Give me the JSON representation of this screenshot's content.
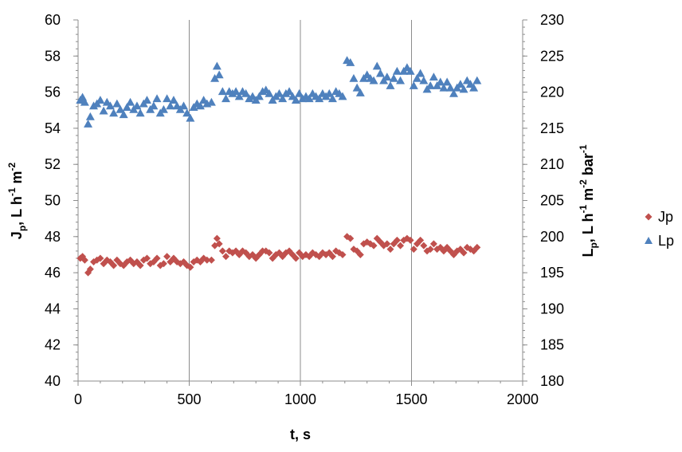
{
  "chart_data": {
    "type": "scatter",
    "title": "",
    "xlabel": "t, s",
    "ylabel_left": {
      "main": "J",
      "sub": "p",
      "rest": ", L h",
      "sup1": "-1",
      "mid": " m",
      "sup2": "-2"
    },
    "ylabel_right": {
      "main": "L",
      "sub": "p",
      "rest": ", L h",
      "sup1": "-1",
      "mid": " m",
      "sup2": "-2",
      "mid2": " bar",
      "sup3": "-1"
    },
    "xlim": [
      0,
      2000
    ],
    "ylim_left": [
      40,
      60
    ],
    "ylim_right": [
      180,
      230
    ],
    "x_ticks": [
      "0",
      "500",
      "1000",
      "1500",
      "2000"
    ],
    "y_left_ticks": [
      "40",
      "42",
      "44",
      "46",
      "48",
      "50",
      "52",
      "54",
      "56",
      "58",
      "60"
    ],
    "y_right_ticks": [
      "180",
      "185",
      "190",
      "195",
      "200",
      "205",
      "210",
      "215",
      "220",
      "225",
      "230"
    ],
    "grid": "vertical",
    "legend_position": "right",
    "series": [
      {
        "name": "Jp",
        "axis": "left",
        "color": "#C0504D",
        "marker": "diamond",
        "points": [
          [
            10,
            46.8
          ],
          [
            20,
            46.9
          ],
          [
            30,
            46.7
          ],
          [
            45,
            46.0
          ],
          [
            55,
            46.2
          ],
          [
            70,
            46.6
          ],
          [
            85,
            46.7
          ],
          [
            100,
            46.8
          ],
          [
            115,
            46.5
          ],
          [
            130,
            46.7
          ],
          [
            145,
            46.6
          ],
          [
            160,
            46.4
          ],
          [
            175,
            46.7
          ],
          [
            190,
            46.5
          ],
          [
            205,
            46.4
          ],
          [
            220,
            46.6
          ],
          [
            235,
            46.7
          ],
          [
            250,
            46.5
          ],
          [
            265,
            46.6
          ],
          [
            280,
            46.4
          ],
          [
            295,
            46.7
          ],
          [
            310,
            46.8
          ],
          [
            325,
            46.5
          ],
          [
            340,
            46.6
          ],
          [
            355,
            46.8
          ],
          [
            370,
            46.4
          ],
          [
            385,
            46.5
          ],
          [
            400,
            46.9
          ],
          [
            415,
            46.6
          ],
          [
            430,
            46.8
          ],
          [
            445,
            46.6
          ],
          [
            460,
            46.5
          ],
          [
            475,
            46.6
          ],
          [
            490,
            46.4
          ],
          [
            505,
            46.3
          ],
          [
            520,
            46.6
          ],
          [
            535,
            46.7
          ],
          [
            550,
            46.6
          ],
          [
            565,
            46.8
          ],
          [
            580,
            46.7
          ],
          [
            600,
            46.7
          ],
          [
            615,
            47.5
          ],
          [
            625,
            47.9
          ],
          [
            635,
            47.6
          ],
          [
            650,
            47.2
          ],
          [
            665,
            46.9
          ],
          [
            680,
            47.2
          ],
          [
            695,
            47.1
          ],
          [
            710,
            47.2
          ],
          [
            725,
            47.0
          ],
          [
            740,
            47.2
          ],
          [
            755,
            47.1
          ],
          [
            770,
            46.9
          ],
          [
            785,
            47.0
          ],
          [
            800,
            46.8
          ],
          [
            815,
            47.0
          ],
          [
            830,
            47.2
          ],
          [
            845,
            47.2
          ],
          [
            860,
            47.1
          ],
          [
            875,
            46.8
          ],
          [
            890,
            47.0
          ],
          [
            905,
            47.1
          ],
          [
            920,
            46.9
          ],
          [
            935,
            47.1
          ],
          [
            950,
            47.2
          ],
          [
            965,
            47.0
          ],
          [
            980,
            46.8
          ],
          [
            995,
            47.1
          ],
          [
            1010,
            46.9
          ],
          [
            1025,
            47.0
          ],
          [
            1040,
            46.9
          ],
          [
            1055,
            47.1
          ],
          [
            1070,
            47.0
          ],
          [
            1085,
            46.9
          ],
          [
            1100,
            47.1
          ],
          [
            1115,
            47.0
          ],
          [
            1130,
            47.1
          ],
          [
            1145,
            46.9
          ],
          [
            1160,
            47.2
          ],
          [
            1175,
            47.1
          ],
          [
            1190,
            47.0
          ],
          [
            1210,
            48.0
          ],
          [
            1225,
            47.9
          ],
          [
            1240,
            47.3
          ],
          [
            1255,
            47.2
          ],
          [
            1270,
            47.0
          ],
          [
            1285,
            47.6
          ],
          [
            1300,
            47.7
          ],
          [
            1315,
            47.6
          ],
          [
            1330,
            47.5
          ],
          [
            1345,
            47.9
          ],
          [
            1360,
            47.7
          ],
          [
            1375,
            47.5
          ],
          [
            1390,
            47.6
          ],
          [
            1405,
            47.3
          ],
          [
            1420,
            47.6
          ],
          [
            1435,
            47.8
          ],
          [
            1450,
            47.5
          ],
          [
            1465,
            47.8
          ],
          [
            1480,
            47.9
          ],
          [
            1495,
            47.8
          ],
          [
            1510,
            47.3
          ],
          [
            1525,
            47.6
          ],
          [
            1540,
            47.8
          ],
          [
            1555,
            47.5
          ],
          [
            1570,
            47.2
          ],
          [
            1585,
            47.3
          ],
          [
            1600,
            47.6
          ],
          [
            1615,
            47.3
          ],
          [
            1630,
            47.4
          ],
          [
            1645,
            47.2
          ],
          [
            1660,
            47.4
          ],
          [
            1675,
            47.2
          ],
          [
            1690,
            47.0
          ],
          [
            1705,
            47.2
          ],
          [
            1720,
            47.3
          ],
          [
            1735,
            47.1
          ],
          [
            1750,
            47.4
          ],
          [
            1765,
            47.3
          ],
          [
            1780,
            47.2
          ],
          [
            1795,
            47.4
          ]
        ]
      },
      {
        "name": "Lp",
        "axis": "right",
        "color": "#4F81BD",
        "marker": "triangle",
        "points": [
          [
            10,
            218.9
          ],
          [
            20,
            219.3
          ],
          [
            30,
            218.6
          ],
          [
            45,
            215.6
          ],
          [
            55,
            216.6
          ],
          [
            70,
            218.1
          ],
          [
            85,
            218.4
          ],
          [
            100,
            218.9
          ],
          [
            115,
            217.4
          ],
          [
            130,
            218.6
          ],
          [
            145,
            218.1
          ],
          [
            160,
            217.1
          ],
          [
            175,
            218.4
          ],
          [
            190,
            217.6
          ],
          [
            205,
            216.9
          ],
          [
            220,
            217.9
          ],
          [
            235,
            218.6
          ],
          [
            250,
            217.6
          ],
          [
            265,
            218.1
          ],
          [
            280,
            217.1
          ],
          [
            295,
            218.4
          ],
          [
            310,
            218.9
          ],
          [
            325,
            217.6
          ],
          [
            340,
            218.1
          ],
          [
            355,
            219.1
          ],
          [
            370,
            217.1
          ],
          [
            385,
            217.6
          ],
          [
            400,
            219.1
          ],
          [
            415,
            218.1
          ],
          [
            430,
            218.9
          ],
          [
            445,
            218.1
          ],
          [
            460,
            217.6
          ],
          [
            475,
            218.1
          ],
          [
            490,
            217.1
          ],
          [
            505,
            216.4
          ],
          [
            520,
            217.9
          ],
          [
            535,
            218.4
          ],
          [
            550,
            218.1
          ],
          [
            565,
            218.9
          ],
          [
            580,
            218.4
          ],
          [
            600,
            218.6
          ],
          [
            615,
            221.9
          ],
          [
            625,
            223.6
          ],
          [
            635,
            222.4
          ],
          [
            650,
            220.1
          ],
          [
            665,
            219.1
          ],
          [
            680,
            220.1
          ],
          [
            695,
            219.8
          ],
          [
            710,
            220.1
          ],
          [
            725,
            219.4
          ],
          [
            740,
            220.1
          ],
          [
            755,
            219.8
          ],
          [
            770,
            219.1
          ],
          [
            785,
            219.4
          ],
          [
            800,
            218.9
          ],
          [
            815,
            219.4
          ],
          [
            830,
            220.1
          ],
          [
            845,
            220.3
          ],
          [
            860,
            219.8
          ],
          [
            875,
            218.9
          ],
          [
            890,
            219.4
          ],
          [
            905,
            219.8
          ],
          [
            920,
            219.1
          ],
          [
            935,
            219.8
          ],
          [
            950,
            220.1
          ],
          [
            965,
            219.4
          ],
          [
            980,
            218.9
          ],
          [
            995,
            219.8
          ],
          [
            1010,
            219.1
          ],
          [
            1025,
            219.4
          ],
          [
            1040,
            219.1
          ],
          [
            1055,
            219.8
          ],
          [
            1070,
            219.4
          ],
          [
            1085,
            219.1
          ],
          [
            1100,
            219.8
          ],
          [
            1115,
            219.4
          ],
          [
            1130,
            219.8
          ],
          [
            1145,
            219.1
          ],
          [
            1160,
            220.1
          ],
          [
            1175,
            219.8
          ],
          [
            1190,
            219.4
          ],
          [
            1210,
            224.4
          ],
          [
            1225,
            224.1
          ],
          [
            1240,
            221.9
          ],
          [
            1255,
            220.6
          ],
          [
            1270,
            219.9
          ],
          [
            1285,
            221.9
          ],
          [
            1300,
            222.4
          ],
          [
            1315,
            221.9
          ],
          [
            1330,
            221.6
          ],
          [
            1345,
            223.6
          ],
          [
            1360,
            222.6
          ],
          [
            1375,
            221.6
          ],
          [
            1390,
            222.1
          ],
          [
            1405,
            220.9
          ],
          [
            1420,
            221.9
          ],
          [
            1435,
            222.9
          ],
          [
            1450,
            221.6
          ],
          [
            1465,
            222.9
          ],
          [
            1480,
            223.4
          ],
          [
            1495,
            222.9
          ],
          [
            1510,
            220.9
          ],
          [
            1525,
            221.9
          ],
          [
            1540,
            222.6
          ],
          [
            1555,
            221.6
          ],
          [
            1570,
            220.4
          ],
          [
            1585,
            220.9
          ],
          [
            1600,
            222.1
          ],
          [
            1615,
            220.9
          ],
          [
            1630,
            221.4
          ],
          [
            1645,
            220.6
          ],
          [
            1660,
            221.4
          ],
          [
            1675,
            220.6
          ],
          [
            1690,
            219.8
          ],
          [
            1705,
            220.6
          ],
          [
            1720,
            221.1
          ],
          [
            1735,
            220.4
          ],
          [
            1750,
            221.6
          ],
          [
            1765,
            221.1
          ],
          [
            1780,
            220.6
          ],
          [
            1795,
            221.6
          ]
        ]
      }
    ]
  }
}
